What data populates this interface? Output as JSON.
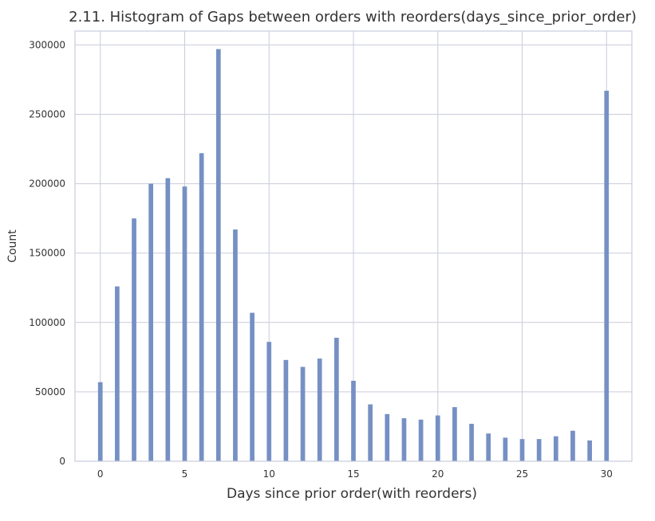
{
  "chart_data": {
    "type": "bar",
    "title": "2.11. Histogram of Gaps between orders with reorders(days_since_prior_order)",
    "xlabel": "Days since prior order(with reorders)",
    "ylabel": "Count",
    "xlim": [
      -1.5,
      31.5
    ],
    "ylim": [
      0,
      310000
    ],
    "xticks": [
      0,
      5,
      10,
      15,
      20,
      25,
      30
    ],
    "yticks": [
      0,
      50000,
      100000,
      150000,
      200000,
      250000,
      300000
    ],
    "grid": true,
    "bar_color": "#7690c4",
    "grid_color": "#c9ccdb",
    "x": [
      0,
      1,
      2,
      3,
      4,
      5,
      6,
      7,
      8,
      9,
      10,
      11,
      12,
      13,
      14,
      15,
      16,
      17,
      18,
      19,
      20,
      21,
      22,
      23,
      24,
      25,
      26,
      27,
      28,
      29,
      30
    ],
    "values": [
      57000,
      126000,
      175000,
      200000,
      204000,
      198000,
      222000,
      297000,
      167000,
      107000,
      86000,
      73000,
      68000,
      74000,
      89000,
      58000,
      41000,
      34000,
      31000,
      30000,
      33000,
      39000,
      27000,
      20000,
      17000,
      16000,
      16000,
      18000,
      22000,
      15000,
      267000
    ]
  }
}
